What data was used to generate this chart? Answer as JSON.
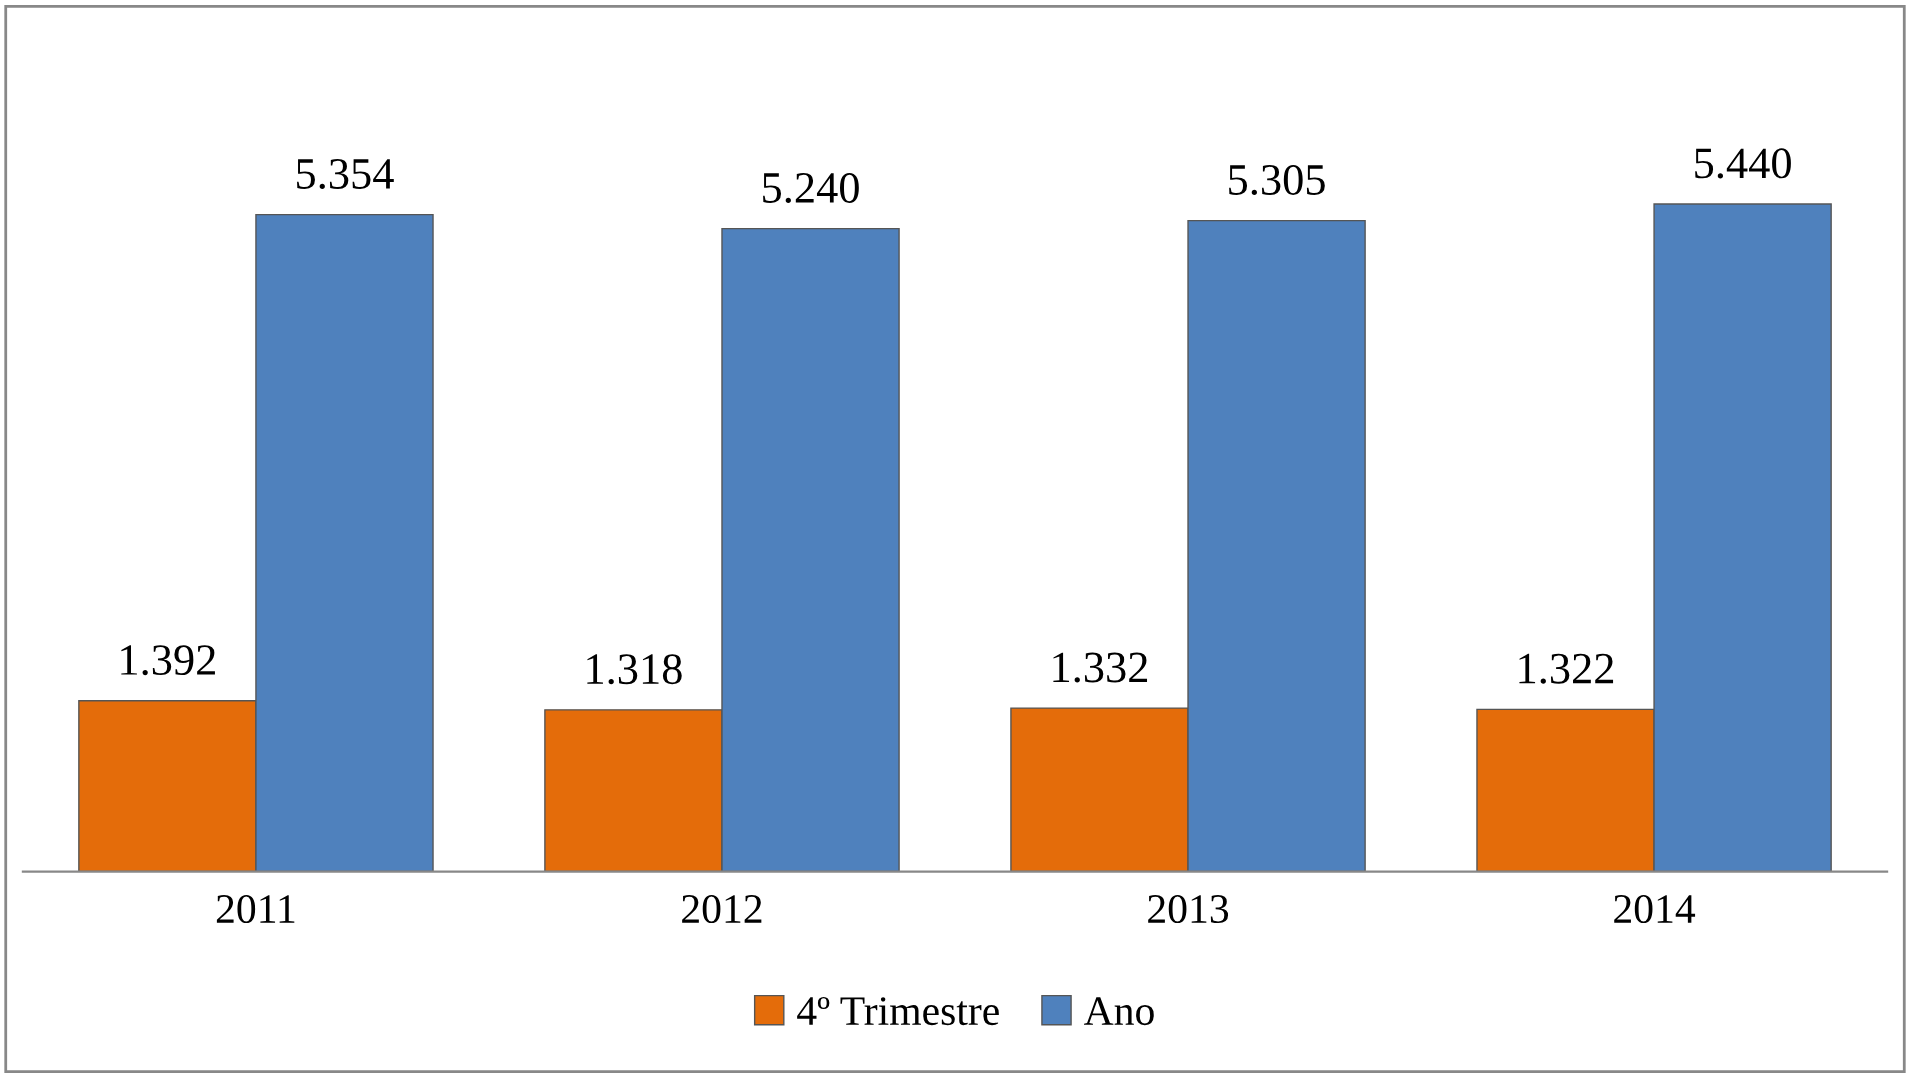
{
  "chart_data": {
    "type": "bar",
    "categories": [
      "2011",
      "2012",
      "2013",
      "2014"
    ],
    "series": [
      {
        "name": "4º Trimestre",
        "color": "#e46c0a",
        "values": [
          1.392,
          1.318,
          1.332,
          1.322
        ],
        "value_labels": [
          "1.392",
          "1.318",
          "1.332",
          "1.322"
        ]
      },
      {
        "name": "Ano",
        "color": "#4f81bd",
        "values": [
          5.354,
          5.24,
          5.305,
          5.44
        ],
        "value_labels": [
          "5.354",
          "5.240",
          "5.305",
          "5.440"
        ]
      }
    ],
    "legend": "bottom",
    "grid": false
  }
}
